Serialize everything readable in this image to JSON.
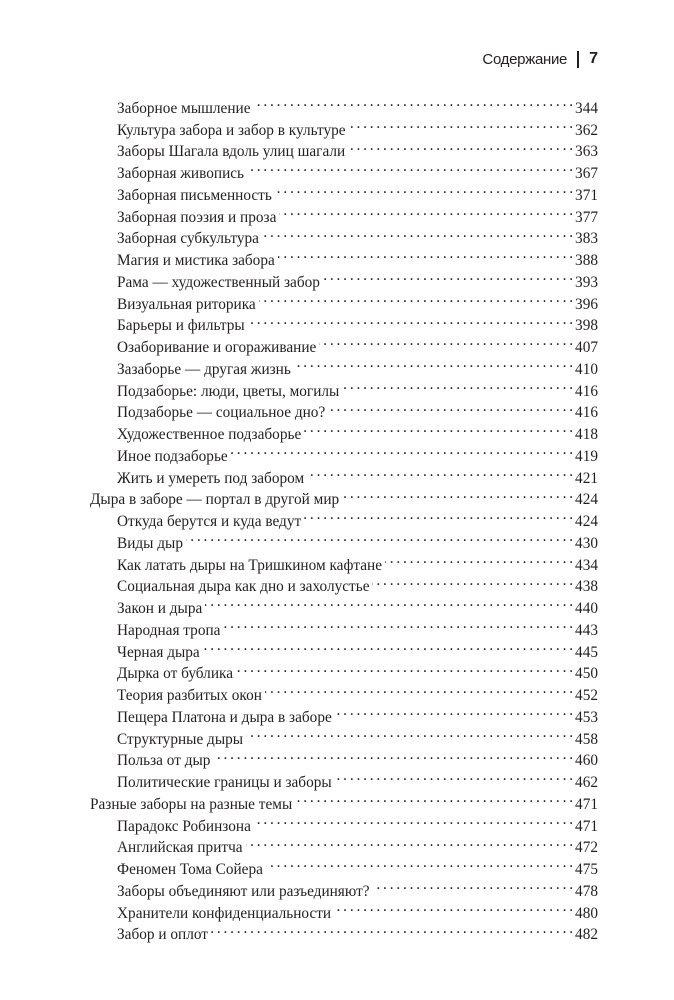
{
  "header": {
    "section": "Содержание",
    "page_number": "7"
  },
  "toc": [
    {
      "title": "Заборное мышление",
      "page": "344",
      "level": 2
    },
    {
      "title": "Культура забора и забор в культуре",
      "page": "362",
      "level": 2
    },
    {
      "title": "Заборы Шагала вдоль улиц шагали",
      "page": "363",
      "level": 2
    },
    {
      "title": "Заборная живопись",
      "page": "367",
      "level": 2
    },
    {
      "title": "Заборная письменность",
      "page": "371",
      "level": 2
    },
    {
      "title": "Заборная поэзия и проза",
      "page": "377",
      "level": 2
    },
    {
      "title": "Заборная субкультура",
      "page": "383",
      "level": 2
    },
    {
      "title": "Магия и мистика забора",
      "page": "388",
      "level": 2
    },
    {
      "title": "Рама — художественный забор",
      "page": "393",
      "level": 2
    },
    {
      "title": "Визуальная риторика",
      "page": "396",
      "level": 2
    },
    {
      "title": "Барьеры и фильтры",
      "page": "398",
      "level": 2
    },
    {
      "title": "Озаборивание и огораживание",
      "page": "407",
      "level": 2
    },
    {
      "title": "Зазаборье — другая жизнь",
      "page": "410",
      "level": 2
    },
    {
      "title": "Подзаборье: люди, цветы, могилы",
      "page": "416",
      "level": 2
    },
    {
      "title": "Подзаборье — социальное дно?",
      "page": "416",
      "level": 2
    },
    {
      "title": "Художественное подзаборье",
      "page": "418",
      "level": 2
    },
    {
      "title": "Иное подзаборье",
      "page": "419",
      "level": 2
    },
    {
      "title": "Жить и умереть под забором",
      "page": "421",
      "level": 2
    },
    {
      "title": "Дыра в заборе — портал в другой мир",
      "page": "424",
      "level": 1
    },
    {
      "title": "Откуда берутся и куда ведут",
      "page": "424",
      "level": 2
    },
    {
      "title": "Виды дыр",
      "page": "430",
      "level": 2
    },
    {
      "title": "Как латать дыры на Тришкином кафтане",
      "page": "434",
      "level": 2
    },
    {
      "title": "Социальная дыра как дно и захолустье",
      "page": "438",
      "level": 2
    },
    {
      "title": "Закон и дыра",
      "page": "440",
      "level": 2
    },
    {
      "title": "Народная тропа",
      "page": "443",
      "level": 2
    },
    {
      "title": "Черная дыра",
      "page": "445",
      "level": 2
    },
    {
      "title": "Дырка от бублика",
      "page": "450",
      "level": 2
    },
    {
      "title": "Теория разбитых окон",
      "page": "452",
      "level": 2
    },
    {
      "title": "Пещера Платона и дыра в заборе",
      "page": "453",
      "level": 2
    },
    {
      "title": "Структурные дыры",
      "page": "458",
      "level": 2
    },
    {
      "title": "Польза от дыр",
      "page": "460",
      "level": 2
    },
    {
      "title": "Политические границы и заборы",
      "page": "462",
      "level": 2
    },
    {
      "title": "Разные заборы на разные темы",
      "page": "471",
      "level": 1
    },
    {
      "title": "Парадокс Робинзона",
      "page": "471",
      "level": 2
    },
    {
      "title": "Английская притча",
      "page": "472",
      "level": 2
    },
    {
      "title": "Феномен Тома Сойера",
      "page": "475",
      "level": 2
    },
    {
      "title": "Заборы объединяют или разъединяют?",
      "page": "478",
      "level": 2
    },
    {
      "title": "Хранители конфиденциальности",
      "page": "480",
      "level": 2
    },
    {
      "title": "Забор и оплот",
      "page": "482",
      "level": 2
    }
  ]
}
